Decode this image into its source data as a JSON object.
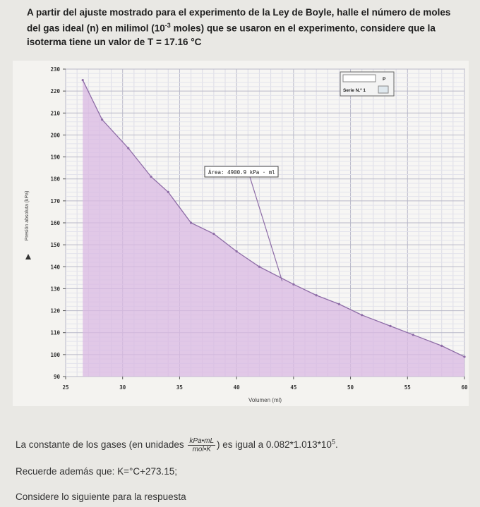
{
  "question": {
    "part1": "A partir del ajuste mostrado para el experimento de la Ley de Boyle, halle el número de moles del gas ideal (n) en milimol (10",
    "exp": "-3",
    "part2": " moles) que se usaron en el experimento, considere que la isoterma tiene un valor de T = 17.16 °C"
  },
  "chart_data": {
    "type": "area",
    "xlabel": "Volumen (ml)",
    "ylabel": "Presión absoluta (kPa)",
    "xlim": [
      25,
      60
    ],
    "ylim": [
      90,
      230
    ],
    "x_ticks": [
      "25",
      "30",
      "35",
      "40",
      "45",
      "50",
      "55",
      "60"
    ],
    "y_ticks": [
      "230",
      "220",
      "210",
      "200",
      "190",
      "180",
      "170",
      "160",
      "150",
      "140",
      "130",
      "120",
      "110",
      "100",
      "90"
    ],
    "points": [
      {
        "x": 26.5,
        "y": 225
      },
      {
        "x": 28.2,
        "y": 207
      },
      {
        "x": 30.5,
        "y": 194
      },
      {
        "x": 32.5,
        "y": 181
      },
      {
        "x": 34,
        "y": 174
      },
      {
        "x": 36,
        "y": 160
      },
      {
        "x": 38,
        "y": 155
      },
      {
        "x": 40,
        "y": 147
      },
      {
        "x": 42,
        "y": 140
      },
      {
        "x": 45,
        "y": 132
      },
      {
        "x": 47,
        "y": 127
      },
      {
        "x": 49,
        "y": 123
      },
      {
        "x": 51,
        "y": 118
      },
      {
        "x": 53.5,
        "y": 113
      },
      {
        "x": 55.5,
        "y": 109
      },
      {
        "x": 58,
        "y": 104
      },
      {
        "x": 60,
        "y": 99
      }
    ],
    "annotation": {
      "text": "Área: 4900.9 kPa · ml",
      "target_x": 44,
      "target_y": 133.5
    },
    "legend": {
      "label": "Serie N.º 1",
      "header": "P",
      "placement": "top-right"
    },
    "grid": true,
    "colors": {
      "line": "#8d6ca6",
      "fill": "#d9b8e3",
      "grid": "#c9c9d6"
    }
  },
  "constant_line": {
    "prefix": "La constante de los gases (en unidades ",
    "frac_num": "kPa•mL",
    "frac_den": "mol•K",
    "suffix": ") es igual a 0.082*1.013*10",
    "exp": "5",
    "end": "."
  },
  "reminder": "Recuerde además que:  K=°C+273.15;",
  "consider": "Considere lo siguiente para la respuesta"
}
